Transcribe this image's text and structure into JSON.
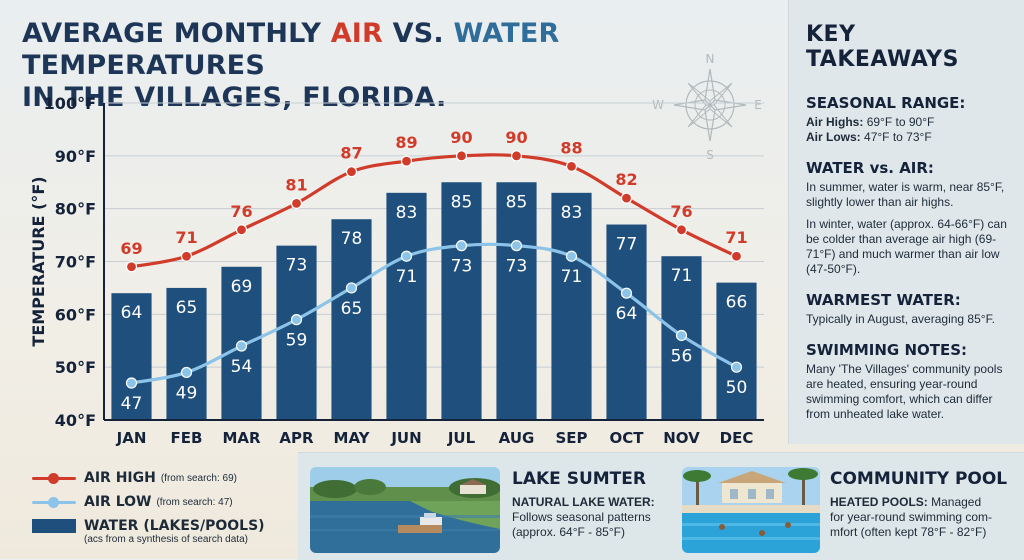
{
  "title": {
    "part1": "AVERAGE MONTHLY ",
    "air": "AIR",
    "part2": " VS. ",
    "water": "WATER",
    "part3": " TEMPERATURES",
    "line2": "IN THE VILLAGES, FLORIDA."
  },
  "compass": {
    "n": "N",
    "e": "E",
    "s": "S",
    "w": "W"
  },
  "chart_data": {
    "type": "bar",
    "ylabel": "TEMPERATURE (°F)",
    "ylim": [
      40,
      100
    ],
    "yticks": [
      40,
      50,
      60,
      70,
      80,
      90,
      100
    ],
    "ytick_suffix": "°F",
    "grid": true,
    "categories": [
      "JAN",
      "FEB",
      "MAR",
      "APR",
      "MAY",
      "JUN",
      "JUL",
      "AUG",
      "SEP",
      "OCT",
      "NOV",
      "DEC"
    ],
    "series": [
      {
        "name": "WATER (LAKES/POOLS)",
        "kind": "bar",
        "color": "#1f4f7c",
        "values": [
          64,
          65,
          69,
          73,
          78,
          83,
          85,
          85,
          83,
          77,
          71,
          66
        ]
      },
      {
        "name": "AIR HIGH",
        "kind": "line",
        "color": "#d13b2a",
        "values": [
          69,
          71,
          76,
          81,
          87,
          89,
          90,
          90,
          88,
          82,
          76,
          71
        ]
      },
      {
        "name": "AIR LOW",
        "kind": "line",
        "color": "#8cc3e8",
        "values": [
          47,
          49,
          54,
          59,
          65,
          71,
          73,
          73,
          71,
          64,
          56,
          50
        ]
      }
    ]
  },
  "legend": {
    "items": [
      {
        "name": "AIR HIGH",
        "note": "(from search: 69)",
        "color": "#d13b2a"
      },
      {
        "name": "AIR LOW",
        "note": "(from search: 47)",
        "color": "#8cc3e8"
      },
      {
        "name": "WATER (LAKES/POOLS)",
        "note": "",
        "color": "#1f4f7c"
      }
    ],
    "footnote": "(acs from a synthesis of search data)"
  },
  "takeaways": {
    "heading": "KEY TAKEAWAYS",
    "seasonal": {
      "title": "SEASONAL RANGE:",
      "air_highs_label": "Air Highs:",
      "air_highs_value": "69°F to 90°F",
      "air_lows_label": "Air Lows:",
      "air_lows_value": "47°F to 73°F"
    },
    "water_vs_air": {
      "title": "WATER vs. AIR:",
      "p1": "In summer, water is warm, near 85°F, slightly lower than air highs.",
      "p2": "In winter, water (approx. 64-66°F) can be colder than average air high (69-71°F) and much warmer than air low (47-50°F)."
    },
    "warmest": {
      "title": "WARMEST WATER:",
      "text": "Typically in August, averaging 85°F."
    },
    "swimming": {
      "title": "SWIMMING NOTES:",
      "text": "Many 'The Villages' community pools are heated, ensuring year-round swimming comfort, which can differ from unheated lake water."
    }
  },
  "lake": {
    "title": "LAKE SUMTER",
    "label": "NATURAL LAKE WATER:",
    "text1": " Follows seasonal patterns",
    "text2": "(approx. 64°F - 85°F)"
  },
  "pool": {
    "title": "COMMUNITY POOL",
    "label": "HEATED POOLS:",
    "text1": " Managed",
    "text2": "for year-round swimming com-",
    "text3": "mfort (often kept 78°F - 82°F)"
  }
}
